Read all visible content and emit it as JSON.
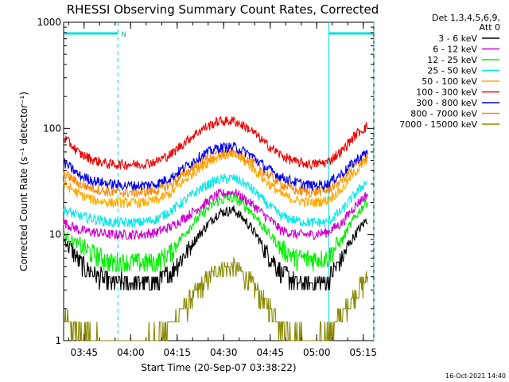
{
  "chart_data": {
    "type": "line",
    "title": "RHESSI Observing Summary Count Rates, Corrected",
    "xlabel": "Start Time (20-Sep-07 03:38:22)",
    "ylabel": "Corrected Count Rate (s⁻¹ detector⁻¹)",
    "yscale": "log",
    "ylim": [
      1,
      1000
    ],
    "xlim_minutes": [
      0,
      100
    ],
    "x_ticks": [
      {
        "minute": 6.6,
        "label": "03:45"
      },
      {
        "minute": 21.6,
        "label": "04:00"
      },
      {
        "minute": 36.6,
        "label": "04:15"
      },
      {
        "minute": 51.6,
        "label": "04:30"
      },
      {
        "minute": 66.6,
        "label": "04:45"
      },
      {
        "minute": 81.6,
        "label": "05:00"
      },
      {
        "minute": 96.6,
        "label": "05:15"
      }
    ],
    "y_ticks": [
      {
        "value": 1,
        "label": "1"
      },
      {
        "value": 10,
        "label": "10"
      },
      {
        "value": 100,
        "label": "100"
      },
      {
        "value": 1000,
        "label": "1000"
      }
    ],
    "legend_header": [
      "Det 1,3,4,5,6,9,",
      "Att 0"
    ],
    "night_intervals_minutes": [
      [
        0,
        17.5
      ],
      [
        85.5,
        100
      ]
    ],
    "night_marker": "N",
    "series": [
      {
        "name": "3 - 6 keV",
        "color": "#000000",
        "x": [
          0,
          5,
          10,
          15,
          20,
          25,
          30,
          35,
          40,
          45,
          50,
          55,
          60,
          65,
          70,
          75,
          80,
          85,
          90,
          95,
          98
        ],
        "values": [
          9,
          5.5,
          4.2,
          3.5,
          3.5,
          3.5,
          3.5,
          4.5,
          7,
          11,
          16,
          17,
          12,
          7,
          4.5,
          3.5,
          3.5,
          3.5,
          6,
          11,
          14
        ]
      },
      {
        "name": "6 - 12 keV",
        "color": "#cc00cc",
        "x": [
          0,
          5,
          10,
          15,
          20,
          25,
          30,
          35,
          40,
          45,
          50,
          55,
          60,
          65,
          70,
          75,
          80,
          85,
          90,
          95,
          98
        ],
        "values": [
          13,
          11,
          10.5,
          10,
          10,
          10,
          10.5,
          12,
          15,
          19,
          24,
          25,
          20,
          15,
          11,
          10,
          10,
          10.5,
          13,
          20,
          24
        ]
      },
      {
        "name": "12 - 25 keV",
        "color": "#00ee00",
        "x": [
          0,
          5,
          10,
          15,
          20,
          25,
          30,
          35,
          40,
          45,
          50,
          55,
          60,
          65,
          70,
          75,
          80,
          85,
          90,
          95,
          98
        ],
        "values": [
          10,
          8,
          6.5,
          5.5,
          5.5,
          5.5,
          5.5,
          7,
          11,
          16,
          21,
          22,
          17,
          11,
          7.5,
          6,
          6,
          6,
          9,
          16,
          21
        ]
      },
      {
        "name": "25 - 50 keV",
        "color": "#00e8e8",
        "x": [
          0,
          5,
          10,
          15,
          20,
          25,
          30,
          35,
          40,
          45,
          50,
          55,
          60,
          65,
          70,
          75,
          80,
          85,
          90,
          95,
          98
        ],
        "values": [
          17,
          15,
          14,
          13,
          13,
          13,
          14,
          17,
          22,
          28,
          33,
          34,
          28,
          20,
          15,
          13.5,
          13,
          13,
          17,
          26,
          32
        ]
      },
      {
        "name": "50 - 100 keV",
        "color": "#ffaa00",
        "x": [
          0,
          5,
          10,
          15,
          20,
          25,
          30,
          35,
          40,
          45,
          50,
          55,
          60,
          65,
          70,
          75,
          80,
          85,
          90,
          95,
          98
        ],
        "values": [
          30,
          24,
          21,
          20,
          20,
          20,
          21,
          25,
          34,
          45,
          55,
          57,
          45,
          32,
          24,
          21,
          20,
          21,
          27,
          42,
          50
        ]
      },
      {
        "name": "100 - 300 keV",
        "color": "#ee0000",
        "x": [
          0,
          5,
          10,
          15,
          20,
          25,
          30,
          35,
          40,
          45,
          50,
          55,
          60,
          65,
          70,
          75,
          80,
          85,
          90,
          95,
          98
        ],
        "values": [
          82,
          58,
          50,
          46,
          46,
          46,
          49,
          58,
          78,
          100,
          117,
          118,
          98,
          72,
          56,
          48,
          46,
          48,
          62,
          92,
          105
        ]
      },
      {
        "name": "300 - 800 keV",
        "color": "#0000ee",
        "x": [
          0,
          5,
          10,
          15,
          20,
          25,
          30,
          35,
          40,
          45,
          50,
          55,
          60,
          65,
          70,
          75,
          80,
          85,
          90,
          95,
          98
        ],
        "values": [
          48,
          36,
          32,
          30,
          29,
          29,
          30,
          35,
          45,
          57,
          66,
          67,
          57,
          43,
          35,
          31,
          29,
          30,
          38,
          52,
          60
        ]
      },
      {
        "name": "800 - 7000 keV",
        "color": "#ff8800",
        "x": [
          0,
          5,
          10,
          15,
          20,
          25,
          30,
          35,
          40,
          45,
          50,
          55,
          60,
          65,
          70,
          75,
          80,
          85,
          90,
          95,
          98
        ],
        "values": [
          38,
          30,
          27,
          25,
          25,
          25,
          26,
          30,
          39,
          50,
          58,
          60,
          50,
          38,
          30,
          26,
          25,
          26,
          33,
          47,
          54
        ]
      },
      {
        "name": "7000 - 15000 keV",
        "color": "#888800",
        "x": [
          0,
          5,
          10,
          15,
          20,
          25,
          30,
          35,
          40,
          45,
          50,
          55,
          60,
          65,
          70,
          75,
          80,
          85,
          90,
          95,
          98
        ],
        "values": [
          1.6,
          1.2,
          1.1,
          1.0,
          1.0,
          1.0,
          1.1,
          1.5,
          2.2,
          3.4,
          4.8,
          5.0,
          3.6,
          2.2,
          1.4,
          1.1,
          1.0,
          1.1,
          1.8,
          3.0,
          3.8
        ]
      }
    ]
  },
  "timestamp": "16-Oct-2021 14:40"
}
